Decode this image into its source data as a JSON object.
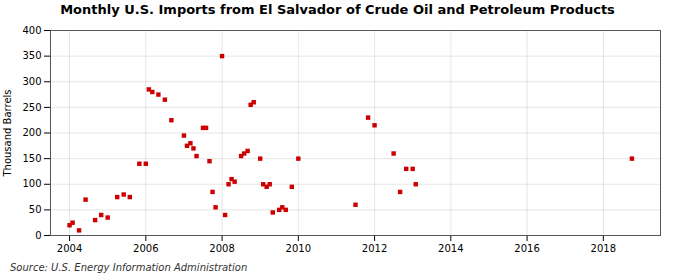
{
  "chart_data": {
    "type": "scatter",
    "title": "Monthly U.S. Imports from El Salvador of Crude Oil and Petroleum Products",
    "ylabel": "Thousand Barrels",
    "source": "Source: U.S. Energy Information Administration",
    "x": [
      2004.0,
      2004.08,
      2004.25,
      2004.42,
      2004.67,
      2004.83,
      2005.0,
      2005.25,
      2005.42,
      2005.58,
      2005.83,
      2006.0,
      2006.08,
      2006.17,
      2006.33,
      2006.5,
      2006.67,
      2007.0,
      2007.08,
      2007.17,
      2007.25,
      2007.33,
      2007.5,
      2007.58,
      2007.67,
      2007.75,
      2007.83,
      2008.0,
      2008.08,
      2008.17,
      2008.25,
      2008.33,
      2008.5,
      2008.58,
      2008.67,
      2008.75,
      2008.83,
      2009.0,
      2009.08,
      2009.17,
      2009.25,
      2009.33,
      2009.5,
      2009.58,
      2009.67,
      2009.83,
      2010.0,
      2011.5,
      2011.83,
      2012.0,
      2012.5,
      2012.67,
      2012.83,
      2013.0,
      2013.08,
      2018.75
    ],
    "values": [
      20,
      25,
      10,
      70,
      30,
      40,
      35,
      75,
      80,
      75,
      140,
      140,
      285,
      280,
      275,
      265,
      225,
      195,
      175,
      180,
      170,
      155,
      210,
      210,
      145,
      85,
      55,
      350,
      40,
      100,
      110,
      105,
      155,
      160,
      165,
      255,
      260,
      150,
      100,
      95,
      100,
      45,
      50,
      55,
      50,
      95,
      150,
      60,
      230,
      215,
      160,
      85,
      130,
      130,
      100,
      150
    ],
    "color": "#cc0000",
    "marker": "square",
    "xlim": [
      2003.5,
      2019.5
    ],
    "ylim": [
      0,
      400
    ],
    "xticks": [
      2004,
      2006,
      2008,
      2010,
      2012,
      2014,
      2016,
      2018
    ],
    "yticks": [
      0,
      50,
      100,
      150,
      200,
      250,
      300,
      350,
      400
    ],
    "grid": true
  }
}
